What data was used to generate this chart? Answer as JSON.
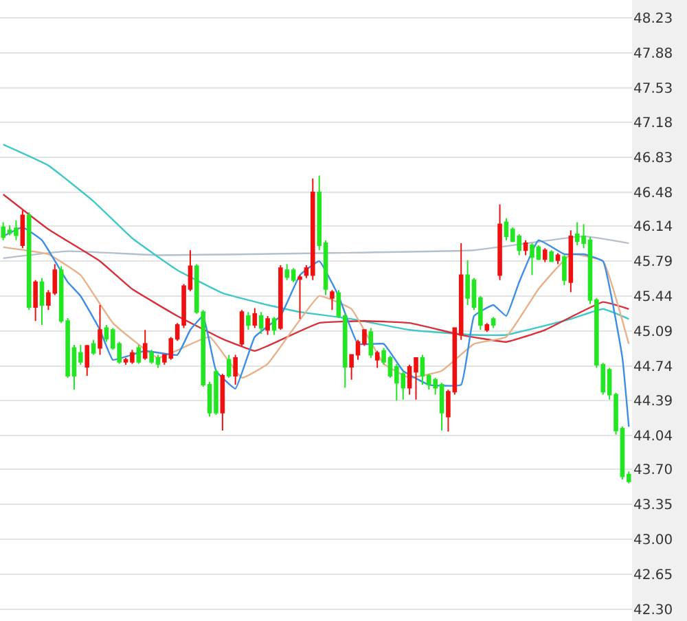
{
  "chart_data": {
    "type": "candlestick",
    "categories": [
      null,
      null,
      null,
      null,
      null,
      null,
      null,
      null,
      null,
      null,
      null,
      null,
      null,
      null,
      null,
      null,
      null,
      null,
      null,
      null,
      null,
      null,
      null,
      null,
      null,
      null,
      null,
      null,
      null,
      null,
      null,
      null,
      null,
      null,
      null,
      null,
      null,
      null,
      null,
      null,
      null,
      null,
      null,
      null,
      null,
      null,
      null,
      null,
      null,
      null,
      null,
      null,
      null,
      null,
      null,
      null,
      null,
      null,
      null,
      null,
      null,
      null,
      null,
      null,
      null,
      null,
      null,
      null,
      null,
      null,
      null,
      null,
      null,
      null,
      null,
      null,
      null,
      null,
      null,
      null,
      null,
      null,
      null,
      null,
      null,
      null,
      null,
      null,
      null,
      null,
      null,
      null,
      null,
      null,
      null,
      null,
      null,
      null
    ],
    "ohlc": [
      [
        46.13,
        46.18,
        46.0,
        46.03
      ],
      [
        46.1,
        46.15,
        46.05,
        46.07
      ],
      [
        46.12,
        46.2,
        46.0,
        46.05
      ],
      [
        45.95,
        46.3,
        45.92,
        46.25
      ],
      [
        46.25,
        46.28,
        45.3,
        45.33
      ],
      [
        45.33,
        45.6,
        45.19,
        45.58
      ],
      [
        45.58,
        45.62,
        45.15,
        45.35
      ],
      [
        45.35,
        45.5,
        45.3,
        45.47
      ],
      [
        45.47,
        45.76,
        45.45,
        45.7
      ],
      [
        45.7,
        45.74,
        45.17,
        45.19
      ],
      [
        45.19,
        45.22,
        44.62,
        44.64
      ],
      [
        44.92,
        44.95,
        44.5,
        44.64
      ],
      [
        44.87,
        44.95,
        44.75,
        44.78
      ],
      [
        44.73,
        44.95,
        44.64,
        44.94
      ],
      [
        44.96,
        45.0,
        44.85,
        44.87
      ],
      [
        44.92,
        45.35,
        44.85,
        45.1
      ],
      [
        45.12,
        45.15,
        44.98,
        45.01
      ],
      [
        45.1,
        45.12,
        44.9,
        44.92
      ],
      [
        44.96,
        44.98,
        44.76,
        44.78
      ],
      [
        44.78,
        44.82,
        44.75,
        44.8
      ],
      [
        44.78,
        44.9,
        44.76,
        44.87
      ],
      [
        44.92,
        44.95,
        44.76,
        44.78
      ],
      [
        44.82,
        45.1,
        44.8,
        44.96
      ],
      [
        44.87,
        44.9,
        44.76,
        44.78
      ],
      [
        44.82,
        44.85,
        44.72,
        44.76
      ],
      [
        44.78,
        44.85,
        44.75,
        44.85
      ],
      [
        44.82,
        45.03,
        44.8,
        45.01
      ],
      [
        45.01,
        45.17,
        44.99,
        45.15
      ],
      [
        45.15,
        45.56,
        45.12,
        45.54
      ],
      [
        45.51,
        45.9,
        45.49,
        45.74
      ],
      [
        45.74,
        45.76,
        45.26,
        45.28
      ],
      [
        45.28,
        45.3,
        44.53,
        44.55
      ],
      [
        44.55,
        44.58,
        44.23,
        44.27
      ],
      [
        44.68,
        44.7,
        44.25,
        44.27
      ],
      [
        44.27,
        44.66,
        44.09,
        44.64
      ],
      [
        44.8,
        44.85,
        44.62,
        44.64
      ],
      [
        44.64,
        44.85,
        44.55,
        44.82
      ],
      [
        44.96,
        45.3,
        44.94,
        45.28
      ],
      [
        45.24,
        45.28,
        45.1,
        45.15
      ],
      [
        45.15,
        45.32,
        45.12,
        45.26
      ],
      [
        45.24,
        45.28,
        45.06,
        45.12
      ],
      [
        45.1,
        45.24,
        45.05,
        45.21
      ],
      [
        45.21,
        45.23,
        45.05,
        45.1
      ],
      [
        45.12,
        45.75,
        45.1,
        45.72
      ],
      [
        45.7,
        45.76,
        45.6,
        45.63
      ],
      [
        45.7,
        45.72,
        45.58,
        45.6
      ],
      [
        45.61,
        45.65,
        45.21,
        45.63
      ],
      [
        45.65,
        45.75,
        45.62,
        45.72
      ],
      [
        45.65,
        46.62,
        45.6,
        46.48
      ],
      [
        46.48,
        46.65,
        45.9,
        45.95
      ],
      [
        45.97,
        46.0,
        45.45,
        45.51
      ],
      [
        45.42,
        45.5,
        45.3,
        45.48
      ],
      [
        45.47,
        45.5,
        45.22,
        45.24
      ],
      [
        45.24,
        45.26,
        44.52,
        44.73
      ],
      [
        44.73,
        44.85,
        44.6,
        44.85
      ],
      [
        44.85,
        45.0,
        44.8,
        44.98
      ],
      [
        44.96,
        45.1,
        44.94,
        45.1
      ],
      [
        45.08,
        45.12,
        44.82,
        44.85
      ],
      [
        44.8,
        44.89,
        44.72,
        44.87
      ],
      [
        44.89,
        44.92,
        44.75,
        44.78
      ],
      [
        44.82,
        44.84,
        44.62,
        44.64
      ],
      [
        44.73,
        44.76,
        44.39,
        44.57
      ],
      [
        44.66,
        44.68,
        44.4,
        44.52
      ],
      [
        44.52,
        44.75,
        44.45,
        44.73
      ],
      [
        44.68,
        44.82,
        44.4,
        44.82
      ],
      [
        44.82,
        44.85,
        44.55,
        44.64
      ],
      [
        44.64,
        44.66,
        44.5,
        44.55
      ],
      [
        44.6,
        44.62,
        44.45,
        44.52
      ],
      [
        44.55,
        44.57,
        44.09,
        44.27
      ],
      [
        44.23,
        44.5,
        44.08,
        44.48
      ],
      [
        44.48,
        45.12,
        44.45,
        45.12
      ],
      [
        45.05,
        45.97,
        45.0,
        45.65
      ],
      [
        45.65,
        45.8,
        45.35,
        45.42
      ],
      [
        45.6,
        45.62,
        45.3,
        45.33
      ],
      [
        45.42,
        45.44,
        45.1,
        45.15
      ],
      [
        45.1,
        45.17,
        45.08,
        45.15
      ],
      [
        45.21,
        45.23,
        45.12,
        45.15
      ],
      [
        45.65,
        46.36,
        45.6,
        46.16
      ],
      [
        46.18,
        46.22,
        46.0,
        46.04
      ],
      [
        46.11,
        46.13,
        45.98,
        45.99
      ],
      [
        46.04,
        46.06,
        45.85,
        45.9
      ],
      [
        45.9,
        46.0,
        45.85,
        45.97
      ],
      [
        45.95,
        45.97,
        45.65,
        45.83
      ],
      [
        45.93,
        45.95,
        45.8,
        45.81
      ],
      [
        45.81,
        45.92,
        45.78,
        45.9
      ],
      [
        45.88,
        45.9,
        45.78,
        45.79
      ],
      [
        45.8,
        45.87,
        45.76,
        45.85
      ],
      [
        45.83,
        45.85,
        45.55,
        45.6
      ],
      [
        45.58,
        46.1,
        45.48,
        46.04
      ],
      [
        46.06,
        46.18,
        45.95,
        45.99
      ],
      [
        46.04,
        46.16,
        45.92,
        45.97
      ],
      [
        46.0,
        46.03,
        45.36,
        45.4
      ],
      [
        45.4,
        45.42,
        44.72,
        44.75
      ],
      [
        44.75,
        44.77,
        44.45,
        44.48
      ],
      [
        44.7,
        44.72,
        44.4,
        44.45
      ],
      [
        44.45,
        44.47,
        44.05,
        44.09
      ],
      [
        44.11,
        44.13,
        43.6,
        43.63
      ],
      [
        43.65,
        43.68,
        43.56,
        43.58
      ]
    ],
    "colors": [
      "#22e622",
      "#22e622",
      "#22e622",
      "#f01010",
      "#22e622",
      "#f01010",
      "#22e622",
      "#f01010",
      "#f01010",
      "#22e622",
      "#22e622",
      "#22e622",
      "#22e622",
      "#f01010",
      "#22e622",
      "#f01010",
      "#22e622",
      "#22e622",
      "#22e622",
      "#f01010",
      "#f01010",
      "#22e622",
      "#f01010",
      "#22e622",
      "#22e622",
      "#f01010",
      "#f01010",
      "#f01010",
      "#f01010",
      "#f01010",
      "#22e622",
      "#22e622",
      "#22e622",
      "#22e622",
      "#f01010",
      "#22e622",
      "#f01010",
      "#f01010",
      "#22e622",
      "#f01010",
      "#22e622",
      "#f01010",
      "#22e622",
      "#f01010",
      "#22e622",
      "#22e622",
      "#f01010",
      "#f01010",
      "#f01010",
      "#22e622",
      "#22e622",
      "#f01010",
      "#22e622",
      "#22e622",
      "#f01010",
      "#f01010",
      "#f01010",
      "#22e622",
      "#f01010",
      "#22e622",
      "#22e622",
      "#22e622",
      "#22e622",
      "#f01010",
      "#f01010",
      "#22e622",
      "#22e622",
      "#22e622",
      "#22e622",
      "#f01010",
      "#f01010",
      "#f01010",
      "#22e622",
      "#22e622",
      "#22e622",
      "#f01010",
      "#22e622",
      "#f01010",
      "#22e622",
      "#22e622",
      "#22e622",
      "#f01010",
      "#22e622",
      "#22e622",
      "#f01010",
      "#22e622",
      "#f01010",
      "#22e622",
      "#f01010",
      "#22e622",
      "#22e622",
      "#22e622",
      "#22e622",
      "#22e622",
      "#22e622",
      "#22e622",
      "#22e622",
      "#22e622"
    ],
    "series": [
      {
        "type": "line",
        "color": "#b4c0cc",
        "values": [
          45.82,
          null,
          null,
          null,
          null,
          null,
          null,
          null,
          null,
          null,
          45.89,
          null,
          null,
          null,
          null,
          null,
          null,
          null,
          null,
          null,
          null,
          null,
          null,
          null,
          45.85,
          null,
          null,
          null,
          null,
          null,
          null,
          null,
          null,
          null,
          null,
          null,
          null,
          null,
          null,
          null,
          null,
          null,
          null,
          null,
          null,
          null,
          null,
          null,
          null,
          45.87,
          null,
          null,
          null,
          null,
          null,
          null,
          null,
          null,
          null,
          null,
          null,
          null,
          null,
          null,
          null,
          null,
          null,
          null,
          null,
          null,
          null,
          null,
          null,
          45.9,
          null,
          null,
          null,
          null,
          null,
          null,
          null,
          null,
          null,
          null,
          null,
          null,
          null,
          null,
          null,
          null,
          46.04,
          null,
          null,
          null,
          null,
          null,
          null,
          45.97
        ]
      },
      {
        "type": "line",
        "color": "#40c8c8",
        "values": [
          46.96,
          null,
          null,
          null,
          null,
          null,
          null,
          46.75,
          null,
          null,
          null,
          null,
          null,
          null,
          46.39,
          null,
          null,
          null,
          null,
          null,
          46.02,
          null,
          null,
          null,
          null,
          null,
          null,
          45.7,
          null,
          null,
          null,
          null,
          null,
          null,
          45.47,
          null,
          null,
          null,
          null,
          null,
          null,
          45.35,
          null,
          null,
          null,
          null,
          45.28,
          null,
          null,
          null,
          null,
          null,
          null,
          null,
          45.21,
          null,
          null,
          null,
          null,
          null,
          null,
          null,
          null,
          45.1,
          null,
          null,
          null,
          null,
          null,
          null,
          null,
          null,
          null,
          45.05,
          null,
          null,
          null,
          null,
          45.05,
          null,
          null,
          null,
          null,
          null,
          null,
          null,
          null,
          null,
          45.21,
          null,
          null,
          null,
          null,
          45.31,
          null,
          null,
          null,
          45.21
        ]
      },
      {
        "type": "line",
        "color": "#d8303a",
        "values": [
          46.46,
          null,
          null,
          null,
          null,
          null,
          null,
          46.11,
          null,
          null,
          null,
          null,
          null,
          null,
          null,
          45.79,
          null,
          null,
          null,
          null,
          45.51,
          null,
          null,
          null,
          null,
          null,
          null,
          45.24,
          null,
          null,
          null,
          null,
          null,
          null,
          45.01,
          null,
          null,
          null,
          null,
          44.89,
          null,
          44.94,
          null,
          null,
          null,
          null,
          null,
          null,
          null,
          45.17,
          null,
          null,
          null,
          null,
          null,
          null,
          45.19,
          null,
          null,
          null,
          null,
          null,
          null,
          45.17,
          null,
          null,
          null,
          null,
          null,
          null,
          null,
          45.05,
          null,
          null,
          null,
          null,
          null,
          null,
          44.98,
          null,
          null,
          null,
          null,
          null,
          45.1,
          null,
          null,
          null,
          null,
          null,
          null,
          null,
          null,
          45.38,
          null,
          null,
          null,
          45.31
        ]
      },
      {
        "type": "line",
        "color": "#e8b088",
        "values": [
          45.93,
          null,
          null,
          null,
          null,
          null,
          null,
          45.86,
          null,
          null,
          null,
          null,
          45.65,
          null,
          null,
          null,
          null,
          45.17,
          null,
          null,
          null,
          null,
          null,
          null,
          44.82,
          null,
          null,
          null,
          null,
          null,
          null,
          null,
          45.03,
          null,
          null,
          null,
          null,
          44.62,
          null,
          null,
          null,
          44.76,
          null,
          null,
          null,
          null,
          null,
          null,
          null,
          45.44,
          null,
          null,
          null,
          null,
          45.31,
          null,
          null,
          null,
          null,
          44.76,
          null,
          null,
          null,
          44.62,
          null,
          null,
          null,
          null,
          44.69,
          null,
          null,
          null,
          null,
          44.96,
          null,
          null,
          null,
          null,
          45.03,
          null,
          null,
          null,
          null,
          45.51,
          null,
          null,
          null,
          null,
          45.86,
          null,
          null,
          null,
          null,
          45.79,
          null,
          null,
          null,
          44.96
        ]
      },
      {
        "type": "line",
        "color": "#3a8ee6",
        "values": [
          46.04,
          null,
          null,
          46.13,
          null,
          null,
          46.0,
          null,
          null,
          null,
          45.58,
          null,
          45.44,
          null,
          null,
          45.1,
          null,
          44.8,
          null,
          null,
          null,
          null,
          44.89,
          null,
          null,
          null,
          null,
          44.85,
          null,
          45.1,
          null,
          45.24,
          null,
          44.69,
          null,
          null,
          44.51,
          null,
          null,
          45.03,
          null,
          null,
          null,
          45.24,
          null,
          null,
          45.65,
          null,
          null,
          45.79,
          null,
          null,
          45.44,
          null,
          null,
          44.96,
          null,
          null,
          null,
          44.96,
          null,
          null,
          44.69,
          null,
          null,
          null,
          44.55,
          null,
          null,
          null,
          null,
          44.55,
          null,
          45.24,
          null,
          null,
          45.35,
          null,
          45.24,
          null,
          45.58,
          null,
          null,
          46.0,
          null,
          null,
          null,
          45.86,
          null,
          null,
          45.86,
          null,
          null,
          45.79,
          null,
          null,
          44.82,
          44.13
        ]
      }
    ],
    "ylim": [
      42.18,
      48.41
    ],
    "yticks": [
      48.23,
      47.88,
      47.53,
      47.18,
      46.83,
      46.48,
      46.14,
      45.79,
      45.44,
      45.09,
      44.74,
      44.39,
      44.04,
      {
        "value": 43.7,
        "label": "43.70"
      },
      43.35,
      {
        "value": 43.0,
        "label": "43.00"
      },
      42.65,
      {
        "value": 42.3,
        "label": "42.30"
      }
    ],
    "grid": "y",
    "tick_labels": "y"
  }
}
